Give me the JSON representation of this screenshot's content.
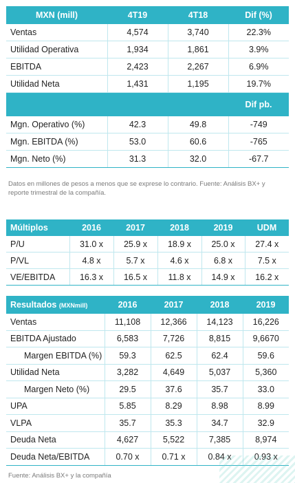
{
  "summary": {
    "headers": [
      "MXN (mill)",
      "4T19",
      "4T18",
      "Dif (%)"
    ],
    "rows": [
      {
        "label": "Ventas",
        "a": "4,574",
        "b": "3,740",
        "c": "22.3%"
      },
      {
        "label": "Utilidad Operativa",
        "a": "1,934",
        "b": "1,861",
        "c": "3.9%"
      },
      {
        "label": "EBITDA",
        "a": "2,423",
        "b": "2,267",
        "c": "6.9%"
      },
      {
        "label": "Utilidad Neta",
        "a": "1,431",
        "b": "1,195",
        "c": "19.7%"
      }
    ],
    "margin_header": "Dif pb.",
    "margin_rows": [
      {
        "label": "Mgn. Operativo (%)",
        "a": "42.3",
        "b": "49.8",
        "c": "-749"
      },
      {
        "label": "Mgn. EBITDA (%)",
        "a": "53.0",
        "b": "60.6",
        "c": "-765"
      },
      {
        "label": "Mgn. Neto (%)",
        "a": "31.3",
        "b": "32.0",
        "c": "-67.7"
      }
    ]
  },
  "note": "Datos en millones de pesos a menos que se exprese lo contrario. Fuente: Análisis BX+ y reporte trimestral de la compañía.",
  "multiples": {
    "headers": [
      "Múltiplos",
      "2016",
      "2017",
      "2018",
      "2019",
      "UDM"
    ],
    "rows": [
      {
        "label": "P/U",
        "v": [
          "31.0 x",
          "25.9 x",
          "18.9 x",
          "25.0 x",
          "27.4 x"
        ]
      },
      {
        "label": "P/VL",
        "v": [
          "4.8 x",
          "5.7 x",
          "4.6 x",
          "6.8 x",
          "7.5 x"
        ]
      },
      {
        "label": "VE/EBITDA",
        "v": [
          "16.3 x",
          "16.5 x",
          "11.8 x",
          "14.9 x",
          "16.2 x"
        ]
      }
    ]
  },
  "results": {
    "header_label": "Resultados",
    "header_unit": "(MXNmill)",
    "headers": [
      "2016",
      "2017",
      "2018",
      "2019"
    ],
    "rows": [
      {
        "label": "Ventas",
        "v": [
          "11,108",
          "12,366",
          "14,123",
          "16,226"
        ]
      },
      {
        "label": "EBITDA Ajustado",
        "v": [
          "6,583",
          "7,726",
          "8,815",
          "9,6670"
        ]
      },
      {
        "label": "Margen EBITDA (%)",
        "v": [
          "59.3",
          "62.5",
          "62.4",
          "59.6"
        ]
      },
      {
        "label": "Utilidad Neta",
        "v": [
          "3,282",
          "4,649",
          "5,037",
          "5,360"
        ]
      },
      {
        "label": "Margen Neto (%)",
        "v": [
          "29.5",
          "37.6",
          "35.7",
          "33.0"
        ]
      },
      {
        "label": "UPA",
        "v": [
          "5.85",
          "8.29",
          "8.98",
          "8.99"
        ]
      },
      {
        "label": "VLPA",
        "v": [
          "35.7",
          "35.3",
          "34.7",
          "32.9"
        ]
      },
      {
        "label": "Deuda Neta",
        "v": [
          "4,627",
          "5,522",
          "7,385",
          "8,974"
        ]
      },
      {
        "label": "Deuda Neta/EBITDA",
        "v": [
          "0.70 x",
          "0.71 x",
          "0.84 x",
          "0.93 x"
        ]
      }
    ]
  },
  "footer": "Fuente: Análisis BX+ y la compañía",
  "colors": {
    "header": "#2fb3c6",
    "grid": "#bfe7ee"
  }
}
